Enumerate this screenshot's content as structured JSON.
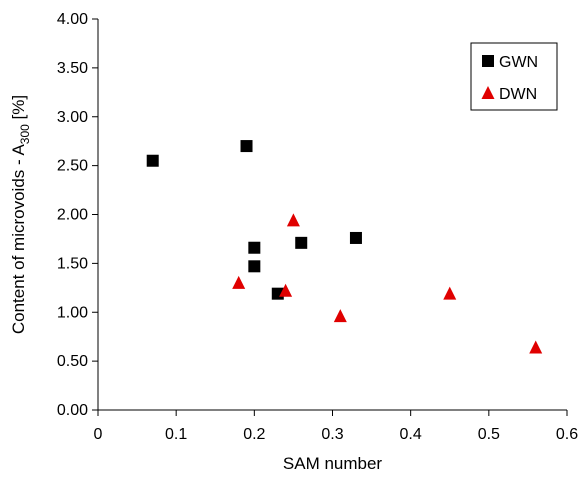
{
  "chart_data": {
    "type": "scatter",
    "title": "",
    "xlabel": "SAM number",
    "ylabel": {
      "prefix": "Content of microvoids - A",
      "subscript": "300",
      "suffix": " [%]"
    },
    "xlim": [
      0,
      0.6
    ],
    "ylim": [
      0,
      4.0
    ],
    "x_ticks": [
      0,
      0.1,
      0.2,
      0.3,
      0.4,
      0.5,
      0.6
    ],
    "x_tick_labels": [
      "0",
      "0.1",
      "0.2",
      "0.3",
      "0.4",
      "0.5",
      "0.6"
    ],
    "y_ticks": [
      0,
      0.5,
      1.0,
      1.5,
      2.0,
      2.5,
      3.0,
      3.5,
      4.0
    ],
    "y_tick_labels": [
      "0.00",
      "0.50",
      "1.00",
      "1.50",
      "2.00",
      "2.50",
      "3.00",
      "3.50",
      "4.00"
    ],
    "grid": false,
    "legend_position": "top-right",
    "series": [
      {
        "name": "GWN",
        "marker": "square",
        "color": "#000000",
        "points": [
          {
            "x": 0.07,
            "y": 2.55
          },
          {
            "x": 0.19,
            "y": 2.7
          },
          {
            "x": 0.2,
            "y": 1.66
          },
          {
            "x": 0.2,
            "y": 1.47
          },
          {
            "x": 0.23,
            "y": 1.19
          },
          {
            "x": 0.26,
            "y": 1.71
          },
          {
            "x": 0.33,
            "y": 1.76
          }
        ]
      },
      {
        "name": "DWN",
        "marker": "triangle",
        "color": "#e00000",
        "points": [
          {
            "x": 0.18,
            "y": 1.3
          },
          {
            "x": 0.24,
            "y": 1.22
          },
          {
            "x": 0.25,
            "y": 1.94
          },
          {
            "x": 0.31,
            "y": 0.96
          },
          {
            "x": 0.45,
            "y": 1.19
          },
          {
            "x": 0.56,
            "y": 0.64
          }
        ]
      }
    ]
  }
}
